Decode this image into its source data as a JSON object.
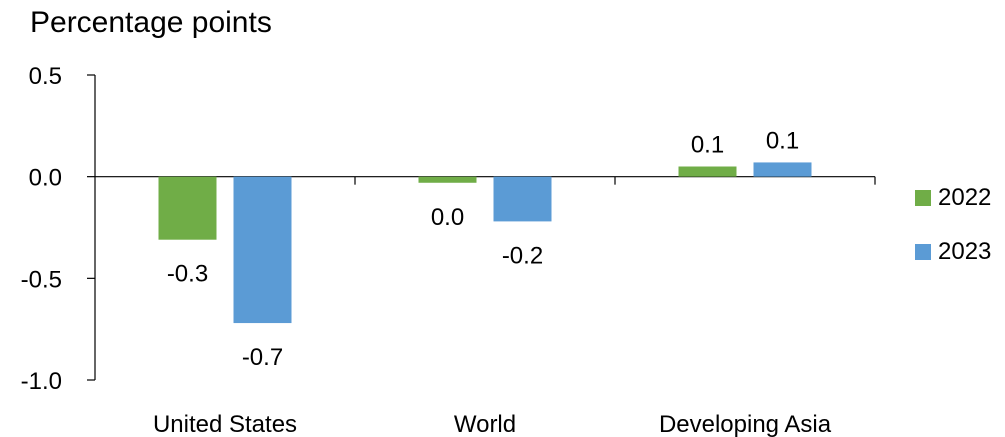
{
  "chart_data": {
    "type": "bar",
    "ylabel": "Percentage points",
    "categories": [
      "United States",
      "World",
      "Developing Asia"
    ],
    "series": [
      {
        "name": "2022",
        "color": "#70ad47",
        "values": [
          -0.31,
          -0.03,
          0.05
        ],
        "labels": [
          "-0.3",
          "0.0",
          "0.1"
        ]
      },
      {
        "name": "2023",
        "color": "#5b9bd5",
        "values": [
          -0.72,
          -0.22,
          0.07
        ],
        "labels": [
          "-0.7",
          "-0.2",
          "0.1"
        ]
      }
    ],
    "ylim": [
      -1.0,
      0.5
    ],
    "yticks": [
      "0.5",
      "0.0",
      "-0.5",
      "-1.0"
    ],
    "yticks_values": [
      0.5,
      0.0,
      -0.5,
      -1.0
    ],
    "grid": false,
    "legend": "right"
  }
}
